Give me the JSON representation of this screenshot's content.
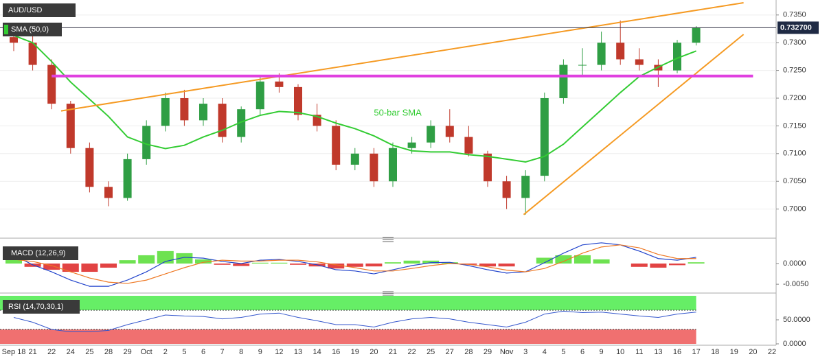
{
  "chart_data": [
    {
      "type": "candlestick",
      "title": "AUD/USD",
      "categories": [
        "Sep 18",
        "21",
        "22",
        "24",
        "25",
        "28",
        "29",
        "Oct",
        "2",
        "5",
        "6",
        "7",
        "8",
        "9",
        "12",
        "13",
        "14",
        "16",
        "19",
        "20",
        "21",
        "22",
        "25",
        "27",
        "28",
        "29",
        "Nov",
        "3",
        "4",
        "5",
        "6",
        "9",
        "10",
        "11",
        "13",
        "16",
        "17",
        "18",
        "19",
        "20",
        "22"
      ],
      "open": [
        0.731,
        0.73,
        0.726,
        0.719,
        0.711,
        0.704,
        0.702,
        0.709,
        0.715,
        0.72,
        0.716,
        0.719,
        0.713,
        0.718,
        0.723,
        0.722,
        0.717,
        0.715,
        0.708,
        0.71,
        0.705,
        0.711,
        0.712,
        0.715,
        0.713,
        0.71,
        0.705,
        0.702,
        0.706,
        0.72,
        0.726,
        0.726,
        0.73,
        0.727,
        0.726,
        0.725,
        0.73,
        null,
        null,
        null,
        null
      ],
      "high": [
        0.733,
        0.7325,
        0.727,
        0.7195,
        0.712,
        0.705,
        0.71,
        0.716,
        0.721,
        0.7215,
        0.72,
        0.72,
        0.7185,
        0.724,
        0.7245,
        0.7225,
        0.719,
        0.716,
        0.711,
        0.711,
        0.712,
        0.713,
        0.716,
        0.718,
        0.715,
        0.7105,
        0.706,
        0.707,
        0.721,
        0.727,
        0.729,
        0.732,
        0.734,
        0.729,
        0.727,
        0.7305,
        0.733,
        null,
        null,
        null,
        null
      ],
      "low": [
        0.7285,
        0.725,
        0.718,
        0.71,
        0.703,
        0.7005,
        0.7015,
        0.708,
        0.714,
        0.715,
        0.715,
        0.712,
        0.712,
        0.717,
        0.721,
        0.716,
        0.714,
        0.707,
        0.707,
        0.704,
        0.704,
        0.71,
        0.711,
        0.712,
        0.7095,
        0.704,
        0.7,
        0.699,
        0.705,
        0.719,
        0.724,
        0.725,
        0.726,
        0.725,
        0.722,
        0.7245,
        0.7295,
        null,
        null,
        null,
        null
      ],
      "close": [
        0.73,
        0.726,
        0.719,
        0.711,
        0.704,
        0.702,
        0.709,
        0.715,
        0.72,
        0.716,
        0.719,
        0.713,
        0.718,
        0.723,
        0.722,
        0.717,
        0.715,
        0.708,
        0.71,
        0.705,
        0.711,
        0.712,
        0.715,
        0.713,
        0.71,
        0.705,
        0.702,
        0.706,
        0.72,
        0.726,
        0.726,
        0.73,
        0.727,
        0.726,
        0.725,
        0.73,
        0.7327,
        null,
        null,
        null,
        null
      ],
      "up_color": "#2f9e44",
      "down_color": "#c0392b",
      "sma": {
        "name": "SMA (50,0)",
        "color": "#33cc33",
        "values": [
          0.7313,
          0.73,
          0.7266,
          0.7229,
          0.7198,
          0.7167,
          0.713,
          0.7117,
          0.7109,
          0.7115,
          0.713,
          0.7142,
          0.7157,
          0.7169,
          0.7176,
          0.7174,
          0.7167,
          0.7155,
          0.7145,
          0.7132,
          0.7115,
          0.7105,
          0.7103,
          0.7103,
          0.7098,
          0.7095,
          0.709,
          0.7085,
          0.7095,
          0.7117,
          0.7148,
          0.7179,
          0.721,
          0.7239,
          0.7256,
          0.7272,
          0.7285,
          null,
          null,
          null,
          null
        ]
      },
      "sma_annotation": {
        "text": "50-bar SMA",
        "x": 19,
        "value": 0.7173
      },
      "trendlines": [
        {
          "color": "#f59a23",
          "from": [
            2.5,
            0.7177
          ],
          "to": [
            38.5,
            0.7372
          ]
        },
        {
          "color": "#f59a23",
          "from": [
            26.9,
            0.699
          ],
          "to": [
            38.5,
            0.7315
          ]
        }
      ],
      "level": {
        "value": 0.724,
        "from": 2,
        "to": 39,
        "color": "#e040e0"
      },
      "last_price": {
        "value": 0.7327,
        "label": "0.732700"
      },
      "ylim": [
        0.695,
        0.7377
      ],
      "yticks": [
        {
          "value": 0.7,
          "label": "0.7000"
        },
        {
          "value": 0.705,
          "label": "0.7050"
        },
        {
          "value": 0.71,
          "label": "0.7100"
        },
        {
          "value": 0.715,
          "label": "0.7150"
        },
        {
          "value": 0.72,
          "label": "0.7200"
        },
        {
          "value": 0.725,
          "label": "0.7250"
        },
        {
          "value": 0.73,
          "label": "0.7300"
        },
        {
          "value": 0.735,
          "label": "0.7350"
        }
      ],
      "grid": true
    },
    {
      "type": "macd",
      "title": "MACD (12,26,9)",
      "series": [
        {
          "name": "MACD",
          "color": "#2244cc",
          "values": [
            0.002,
            -0.0003,
            -0.002,
            -0.004,
            -0.0055,
            -0.0055,
            -0.004,
            -0.002,
            0.0005,
            0.0015,
            0.0013,
            0.0005,
            0,
            0.0008,
            0.001,
            0.0005,
            -0.0003,
            -0.0015,
            -0.0018,
            -0.0025,
            -0.0015,
            -0.0005,
            0.0002,
            0.0003,
            -0.0005,
            -0.0015,
            -0.0023,
            -0.002,
            0.0002,
            0.0025,
            0.0045,
            0.005,
            0.0045,
            0.003,
            0.0012,
            0.0008,
            0.0015,
            null,
            null,
            null,
            null
          ]
        },
        {
          "name": "Signal",
          "color": "#ee7722",
          "values": [
            0.001,
            0.0005,
            -0.0005,
            -0.002,
            -0.0035,
            -0.0045,
            -0.0048,
            -0.004,
            -0.0025,
            -0.001,
            0.0003,
            0.0008,
            0.0006,
            0.0006,
            0.0008,
            0.0008,
            0.0004,
            -0.0003,
            -0.001,
            -0.0018,
            -0.0018,
            -0.0012,
            -0.0005,
            0,
            -0.0002,
            -0.0008,
            -0.0016,
            -0.002,
            -0.0012,
            0.0005,
            0.0025,
            0.004,
            0.0045,
            0.0038,
            0.0022,
            0.0012,
            0.0012,
            null,
            null,
            null,
            null
          ]
        }
      ],
      "histogram": {
        "up_color": "#55dd33",
        "down_color": "#dd2222",
        "values": [
          0.001,
          -0.0008,
          -0.0015,
          -0.002,
          -0.002,
          -0.001,
          0.0008,
          0.002,
          0.003,
          0.0025,
          0.001,
          -0.0003,
          -0.0006,
          0.0002,
          0.0002,
          -0.0003,
          -0.0007,
          -0.0012,
          -0.0008,
          -0.0007,
          0.0003,
          0.0007,
          0.0007,
          0.0003,
          -0.0003,
          -0.0007,
          -0.0007,
          0,
          0.0014,
          0.002,
          0.002,
          0.001,
          0,
          -0.0008,
          -0.001,
          -0.0004,
          0.0003,
          null,
          null,
          null,
          null
        ]
      },
      "ylim": [
        -0.0068,
        0.0053
      ],
      "yticks": [
        {
          "value": 0,
          "label": "0.0000"
        },
        {
          "value": -0.005,
          "label": "-0.0050"
        }
      ]
    },
    {
      "type": "rsi",
      "title": "RSI (14,70,30,1)",
      "color": "#3355cc",
      "values": [
        55,
        45,
        30,
        25,
        25,
        28,
        40,
        50,
        60,
        58,
        57,
        52,
        55,
        62,
        64,
        55,
        48,
        40,
        40,
        35,
        45,
        52,
        55,
        52,
        45,
        40,
        35,
        45,
        62,
        68,
        65,
        66,
        62,
        58,
        55,
        62,
        66,
        null,
        null,
        null,
        null
      ],
      "overbought": 70,
      "oversold": 30,
      "overbought_color": "#66ee66",
      "oversold_color": "#f07070",
      "ylim": [
        0,
        100
      ],
      "yticks": [
        {
          "value": 50,
          "label": "50.0000"
        },
        {
          "value": 0,
          "label": "0.0000"
        }
      ]
    }
  ]
}
